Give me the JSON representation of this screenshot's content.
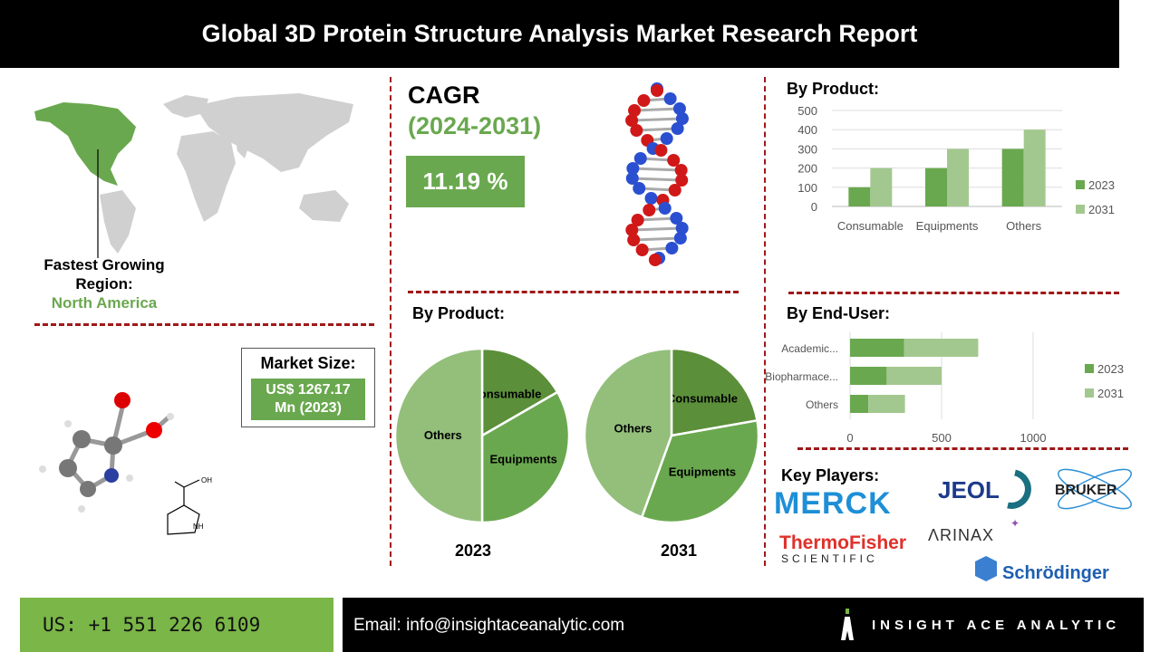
{
  "header": {
    "title": "Global 3D Protein Structure Analysis Market  Research Report"
  },
  "region": {
    "label": "Fastest Growing Region:",
    "value": "North America"
  },
  "cagr": {
    "label": "CAGR",
    "period": "(2024-2031)",
    "value": "11.19 %"
  },
  "market_size": {
    "label": "Market Size:",
    "value_line1": "US$ 1267.17",
    "value_line2": "Mn (2023)"
  },
  "molecule": {
    "oh_label": "OH",
    "nh_label": "NH"
  },
  "colors": {
    "dark_green": "#5b8f3a",
    "mid_green": "#6aa84f",
    "light_green": "#a3c88f",
    "pie_others": "#93bf7b",
    "divider_red": "#a01818"
  },
  "key_players": {
    "label": "Key Players:",
    "logos": [
      "MERCK",
      "JEOL",
      "BRUKER",
      "ThermoFisher SCIENTIFIC",
      "ARINAX",
      "Schrödinger"
    ]
  },
  "footer": {
    "phone": "US: +1 551 226 6109",
    "email": "Email: info@insightaceanalytic.com",
    "brand": "INSIGHT ACE ANALYTIC"
  },
  "chart_data": [
    {
      "id": "product_bar",
      "type": "bar",
      "title": "By Product:",
      "categories": [
        "Consumable",
        "Equipments",
        "Others"
      ],
      "series": [
        {
          "name": "2023",
          "values": [
            100,
            200,
            300
          ]
        },
        {
          "name": "2031",
          "values": [
            200,
            300,
            400
          ]
        }
      ],
      "ylim": [
        0,
        500
      ],
      "yticks": [
        0,
        100,
        200,
        300,
        400,
        500
      ],
      "grid": true,
      "legend": "right"
    },
    {
      "id": "product_pie",
      "type": "pie",
      "title": "By Product:",
      "pies": [
        {
          "label": "2023",
          "slices": [
            {
              "name": "Consumable",
              "value": 100
            },
            {
              "name": "Equipments",
              "value": 200
            },
            {
              "name": "Others",
              "value": 300
            }
          ]
        },
        {
          "label": "2031",
          "slices": [
            {
              "name": "Consumable",
              "value": 200
            },
            {
              "name": "Equipments",
              "value": 300
            },
            {
              "name": "Others",
              "value": 400
            }
          ]
        }
      ]
    },
    {
      "id": "enduser_bar",
      "type": "bar",
      "orientation": "horizontal",
      "stacked": true,
      "title": "By End-User:",
      "categories": [
        "Academic...",
        "Biopharmace...",
        "Others"
      ],
      "series": [
        {
          "name": "2023",
          "values": [
            295,
            200,
            100
          ]
        },
        {
          "name": "2031",
          "values": [
            405,
            300,
            200
          ]
        }
      ],
      "xlim": [
        0,
        1000
      ],
      "xticks": [
        0,
        500,
        1000
      ],
      "grid": true,
      "legend": "right"
    }
  ]
}
